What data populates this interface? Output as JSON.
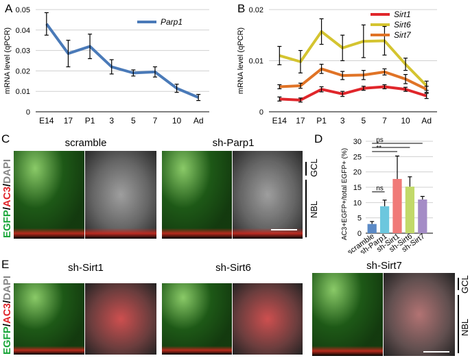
{
  "panels": {
    "A": "A",
    "B": "B",
    "C": "C",
    "D": "D",
    "E": "E"
  },
  "chart_data": [
    {
      "type": "line",
      "panel": "A",
      "ylabel": "mRNA level (qPCR)",
      "categories": [
        "E14",
        "17",
        "P1",
        "3",
        "5",
        "7",
        "10",
        "Ad"
      ],
      "yticks": [
        "0",
        "0.01",
        "0.02",
        "0.03",
        "0.04",
        "0.05"
      ],
      "ylim": [
        0,
        0.05
      ],
      "legend_position": "top-right",
      "series": [
        {
          "name": "Parp1",
          "color": "#4a7ab8",
          "values": [
            0.043,
            0.0285,
            0.032,
            0.022,
            0.019,
            0.0195,
            0.0115,
            0.007
          ],
          "errors": [
            0.0055,
            0.0065,
            0.006,
            0.0035,
            0.0015,
            0.0025,
            0.002,
            0.0015
          ]
        }
      ]
    },
    {
      "type": "line",
      "panel": "B",
      "ylabel": "mRNA level (qPCR)",
      "categories": [
        "E14",
        "17",
        "P1",
        "3",
        "5",
        "7",
        "10",
        "Ad"
      ],
      "yticks": [
        "0",
        "0.01",
        "0.02"
      ],
      "ylim": [
        0,
        0.02
      ],
      "legend_position": "top-right",
      "series": [
        {
          "name": "Sirt1",
          "color": "#e0262b",
          "values": [
            0.0025,
            0.0023,
            0.0044,
            0.0035,
            0.0046,
            0.0049,
            0.0044,
            0.0031
          ],
          "errors": [
            0.0004,
            0.0004,
            0.0005,
            0.0005,
            0.0004,
            0.0004,
            0.0004,
            0.0005
          ]
        },
        {
          "name": "Sirt6",
          "color": "#d4c430",
          "values": [
            0.011,
            0.0098,
            0.0157,
            0.0125,
            0.0138,
            0.0139,
            0.0093,
            0.0051
          ],
          "errors": [
            0.0018,
            0.0022,
            0.0025,
            0.0025,
            0.0032,
            0.0028,
            0.0012,
            0.0009
          ]
        },
        {
          "name": "Sirt7",
          "color": "#e07326",
          "values": [
            0.0049,
            0.0051,
            0.0084,
            0.0071,
            0.0072,
            0.0078,
            0.0064,
            0.0044
          ],
          "errors": [
            0.0004,
            0.0005,
            0.0009,
            0.0008,
            0.0009,
            0.0006,
            0.0009,
            0.0006
          ]
        }
      ]
    },
    {
      "type": "bar",
      "panel": "D",
      "ylabel": "AC3+EGFP+/total EGFP+ (%)",
      "categories": [
        "scramble",
        "sh-Parp1",
        "sh-Sirt1",
        "sh-Sirt6",
        "sh-Sirt7"
      ],
      "values": [
        3.0,
        8.8,
        17.7,
        15.2,
        11.0
      ],
      "errors": [
        0.8,
        2.0,
        7.5,
        3.2,
        1.0
      ],
      "colors": [
        "#5b8ac6",
        "#6cc7de",
        "#f07a78",
        "#c2d96a",
        "#a48cc6"
      ],
      "yticks": [
        "0",
        "5",
        "10",
        "15",
        "20",
        "25",
        "30"
      ],
      "ylim": [
        0,
        30
      ],
      "significance": [
        {
          "from": 0,
          "to": 1,
          "label": "ns"
        },
        {
          "from": 0,
          "to": 4,
          "label": "ns"
        },
        {
          "from": 0,
          "to": 3,
          "label": "*"
        },
        {
          "from": 0,
          "to": 2,
          "label": "**"
        }
      ]
    }
  ],
  "micrographs": {
    "C_left_title": "scramble",
    "C_right_title": "sh-Parp1",
    "E_left_title": "sh-Sirt1",
    "E_mid_title": "sh-Sirt6",
    "E_right_title": "sh-Sirt7",
    "stain_egfp": "EGFP",
    "stain_sep1": "/",
    "stain_ac3": "AC3",
    "stain_sep2": "/",
    "stain_dapi": "DAPI",
    "layer_gcl": "GCL",
    "layer_nbl": "NBL"
  }
}
